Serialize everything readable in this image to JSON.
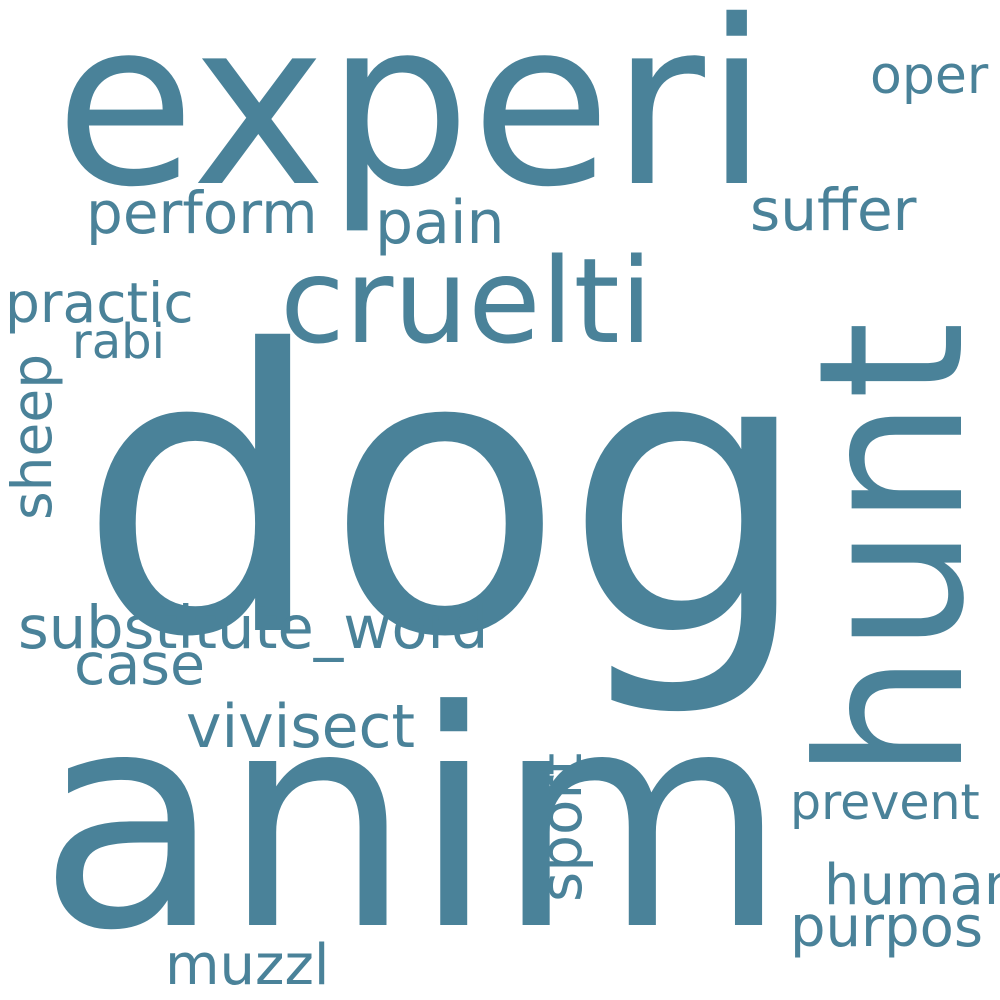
{
  "color": "#4a8299",
  "words": {
    "dog": "dog",
    "anim": "anim",
    "experi": "experi",
    "hunt": "hunt",
    "cruelti": "cruelti",
    "substitute_word": "substitute_word",
    "vivisect": "vivisect",
    "perform": "perform",
    "pain": "pain",
    "suffer": "suffer",
    "oper": "oper",
    "practic": "practic",
    "rabi": "rabi",
    "sheep": "sheep",
    "case": "case",
    "sport": "sport",
    "prevent": "prevent",
    "human": "human",
    "purpos": "purpos",
    "muzzl": "muzzl"
  }
}
